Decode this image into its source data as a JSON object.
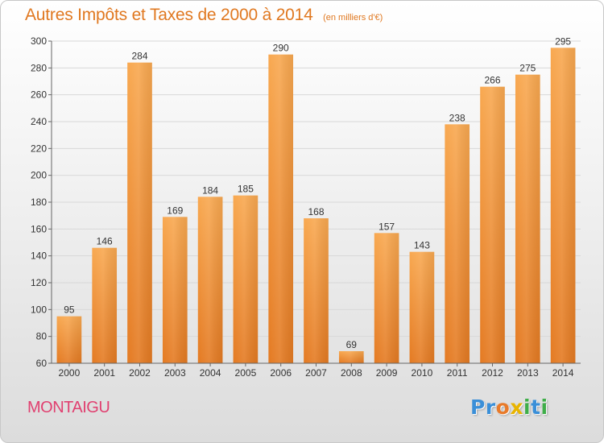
{
  "header": {
    "title": "Autres Impôts et Taxes de 2000 à 2014",
    "subtitle": "(en milliers d'€)"
  },
  "footer": {
    "place": "MONTAIGU",
    "logo_letters": [
      "P",
      "r",
      "o",
      "x",
      "i",
      "t",
      "i"
    ],
    "logo_colors": [
      "#3a8fd8",
      "#3a8fd8",
      "#e87a2a",
      "#e8b400",
      "#3fae49",
      "#3a8fd8",
      "#3fae49"
    ]
  },
  "chart_data": {
    "type": "bar",
    "title": "Autres Impôts et Taxes de 2000 à 2014",
    "subtitle": "(en milliers d'€)",
    "xlabel": "",
    "ylabel": "",
    "categories": [
      "2000",
      "2001",
      "2002",
      "2003",
      "2004",
      "2005",
      "2006",
      "2007",
      "2008",
      "2009",
      "2010",
      "2011",
      "2012",
      "2013",
      "2014"
    ],
    "values": [
      95,
      146,
      284,
      169,
      184,
      185,
      290,
      168,
      69,
      157,
      143,
      238,
      266,
      275,
      295
    ],
    "ylim": [
      60,
      300
    ],
    "yticks": [
      60,
      80,
      100,
      120,
      140,
      160,
      180,
      200,
      220,
      240,
      260,
      280,
      300
    ],
    "grid": true,
    "legend": "none",
    "colors": {
      "bar_light": "#f8a850",
      "bar_dark": "#e47a22",
      "grid": "#d8d8d8",
      "axis": "#666666"
    }
  }
}
